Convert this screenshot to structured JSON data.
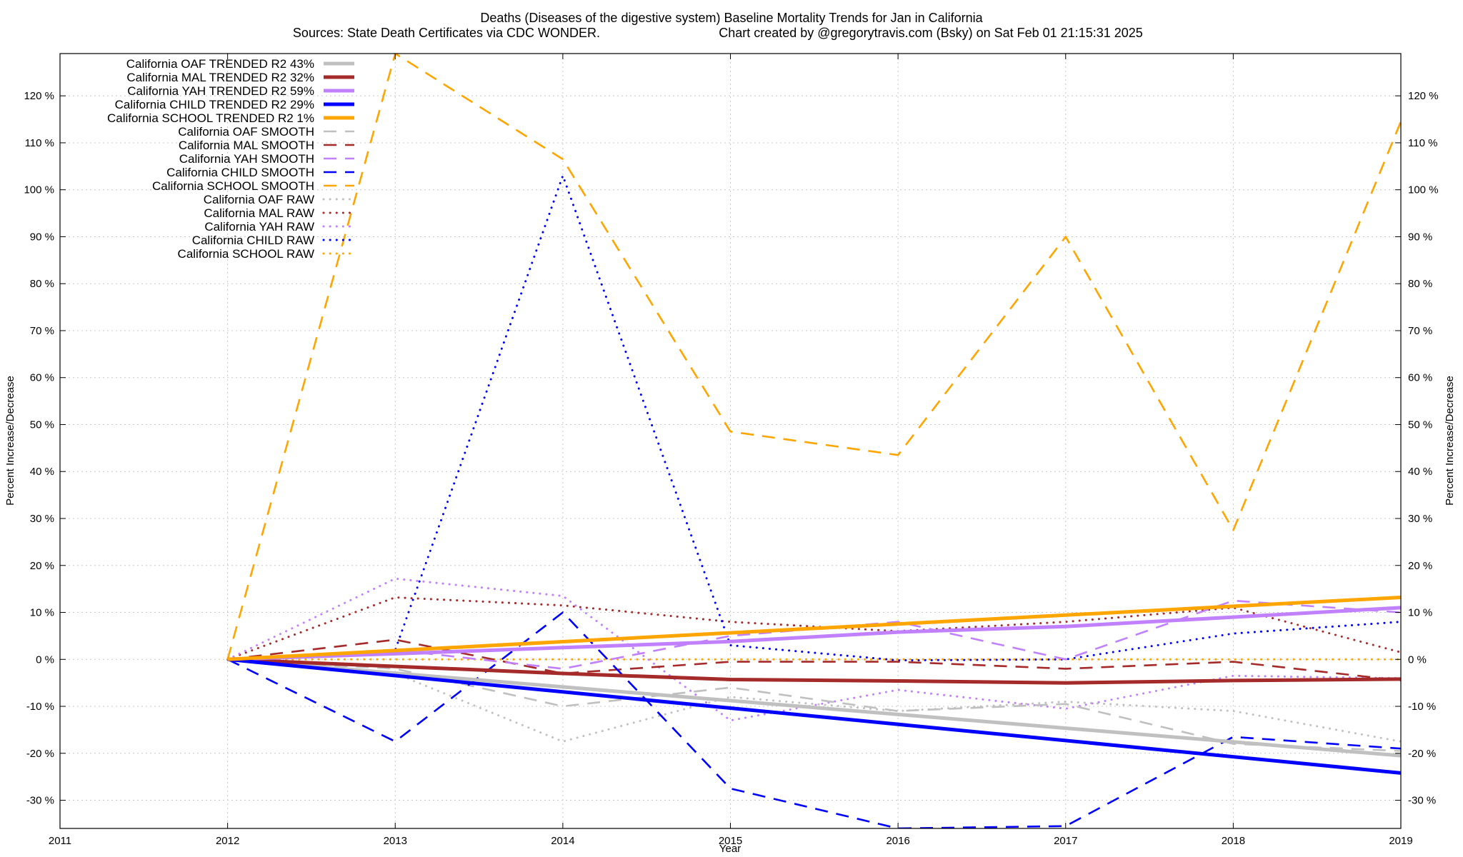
{
  "chart_data": {
    "type": "line",
    "title": "Deaths (Diseases of the digestive system)  Baseline Mortality Trends for Jan in California",
    "subtitle_left": "Sources: State Death Certificates via CDC WONDER.",
    "subtitle_right": "Chart created by @gregorytravis.com (Bsky) on Sat Feb 01 21:15:31 2025",
    "xlabel": "Year",
    "ylabel": "Percent Increase/Decrease",
    "xlim": [
      2011,
      2019
    ],
    "ylim": [
      -36,
      129
    ],
    "x_ticks": [
      2011,
      2012,
      2013,
      2014,
      2015,
      2016,
      2017,
      2018,
      2019
    ],
    "x_tick_labels": [
      "2011",
      "2012",
      "2013",
      "2014",
      "2015",
      "2016",
      "2017",
      "2018",
      "2019"
    ],
    "y_ticks": [
      -30,
      -20,
      -10,
      0,
      10,
      20,
      30,
      40,
      50,
      60,
      70,
      80,
      90,
      100,
      110,
      120
    ],
    "y_tick_labels": [
      "-30 %",
      "-20 %",
      "-10 %",
      "0 %",
      "10 %",
      "20 %",
      "30 %",
      "40 %",
      "50 %",
      "60 %",
      "70 %",
      "80 %",
      "90 %",
      "100 %",
      "110 %",
      "120 %"
    ],
    "grid": true,
    "legend_position": "top-left",
    "series": [
      {
        "name": "California OAF TRENDED R2  43%",
        "style": "solid",
        "color": "#c0c0c0",
        "x": [
          2012,
          2019
        ],
        "values": [
          0,
          -20.5
        ]
      },
      {
        "name": "California MAL TRENDED R2  32%",
        "style": "solid",
        "color": "#a52a2a",
        "x": [
          2012,
          2013,
          2014,
          2015,
          2016,
          2017,
          2018,
          2019
        ],
        "values": [
          0,
          -1.5,
          -3,
          -4.3,
          -4.6,
          -5,
          -4.5,
          -4.2
        ]
      },
      {
        "name": "California YAH TRENDED R2  59%",
        "style": "solid",
        "color": "#c080ff",
        "x": [
          2012,
          2013,
          2014,
          2015,
          2016,
          2017,
          2018,
          2019
        ],
        "values": [
          0,
          1.2,
          2.5,
          3.8,
          5.8,
          7,
          9,
          11
        ]
      },
      {
        "name": "California CHILD TRENDED R2  29%",
        "style": "solid",
        "color": "#0000ff",
        "x": [
          2012,
          2019
        ],
        "values": [
          0,
          -24.2
        ]
      },
      {
        "name": "California SCHOOL TRENDED R2   1%",
        "style": "solid",
        "color": "#ffa500",
        "x": [
          2012,
          2019
        ],
        "values": [
          0,
          13.2
        ]
      },
      {
        "name": "California OAF SMOOTH",
        "style": "dashed",
        "color": "#c0c0c0",
        "x": [
          2012,
          2013,
          2014,
          2015,
          2016,
          2017,
          2018,
          2019
        ],
        "values": [
          0,
          -2,
          -10,
          -6,
          -11,
          -9.5,
          -18,
          -19.5
        ]
      },
      {
        "name": "California MAL SMOOTH",
        "style": "dashed",
        "color": "#a52a2a",
        "x": [
          2012,
          2013,
          2014,
          2015,
          2016,
          2017,
          2018,
          2019
        ],
        "values": [
          0,
          4.2,
          -3,
          -0.5,
          -0.5,
          -2,
          -0.5,
          -4.5
        ]
      },
      {
        "name": "California YAH SMOOTH",
        "style": "dashed",
        "color": "#c080ff",
        "x": [
          2012,
          2013,
          2014,
          2015,
          2016,
          2017,
          2018,
          2019
        ],
        "values": [
          0,
          2,
          -2,
          5,
          8,
          0,
          12.5,
          10
        ]
      },
      {
        "name": "California CHILD SMOOTH",
        "style": "dashed",
        "color": "#0000ff",
        "x": [
          2012,
          2013,
          2014,
          2015,
          2016,
          2017,
          2018,
          2019
        ],
        "values": [
          0,
          -17.5,
          10,
          -27.5,
          -36,
          -35.5,
          -16.5,
          -19
        ]
      },
      {
        "name": "California SCHOOL SMOOTH",
        "style": "dashed",
        "color": "#ffa500",
        "x": [
          2012,
          2013,
          2014,
          2015,
          2016,
          2017,
          2018,
          2019
        ],
        "values": [
          0,
          129,
          106.5,
          48.5,
          43.5,
          90,
          27.5,
          114.5
        ]
      },
      {
        "name": "California OAF RAW",
        "style": "dotted",
        "color": "#c0c0c0",
        "x": [
          2012,
          2013,
          2014,
          2015,
          2016,
          2017,
          2018,
          2019
        ],
        "values": [
          0,
          -3,
          -17.5,
          -8,
          -11,
          -9,
          -11,
          -17.5
        ]
      },
      {
        "name": "California MAL RAW",
        "style": "dotted",
        "color": "#a52a2a",
        "x": [
          2012,
          2013,
          2014,
          2015,
          2016,
          2017,
          2018,
          2019
        ],
        "values": [
          0,
          13.2,
          11.5,
          8,
          6,
          8,
          11,
          1.5
        ]
      },
      {
        "name": "California YAH RAW",
        "style": "dotted",
        "color": "#c080ff",
        "x": [
          2012,
          2013,
          2014,
          2015,
          2016,
          2017,
          2018,
          2019
        ],
        "values": [
          0,
          17.2,
          13.5,
          -13,
          -6.5,
          -10.5,
          -3.5,
          -4
        ]
      },
      {
        "name": "California CHILD RAW",
        "style": "dotted",
        "color": "#0000ff",
        "x": [
          2012,
          2013,
          2014,
          2015,
          2016,
          2017,
          2018,
          2019
        ],
        "values": [
          0,
          2,
          103,
          3,
          -0.2,
          0,
          5.5,
          8
        ]
      },
      {
        "name": "California SCHOOL RAW",
        "style": "dotted",
        "color": "#ffa500",
        "x": [
          2012,
          2013,
          2014,
          2015,
          2016,
          2017,
          2018,
          2019
        ],
        "values": [
          0,
          0,
          0,
          0,
          0,
          0,
          0,
          0
        ]
      }
    ]
  }
}
